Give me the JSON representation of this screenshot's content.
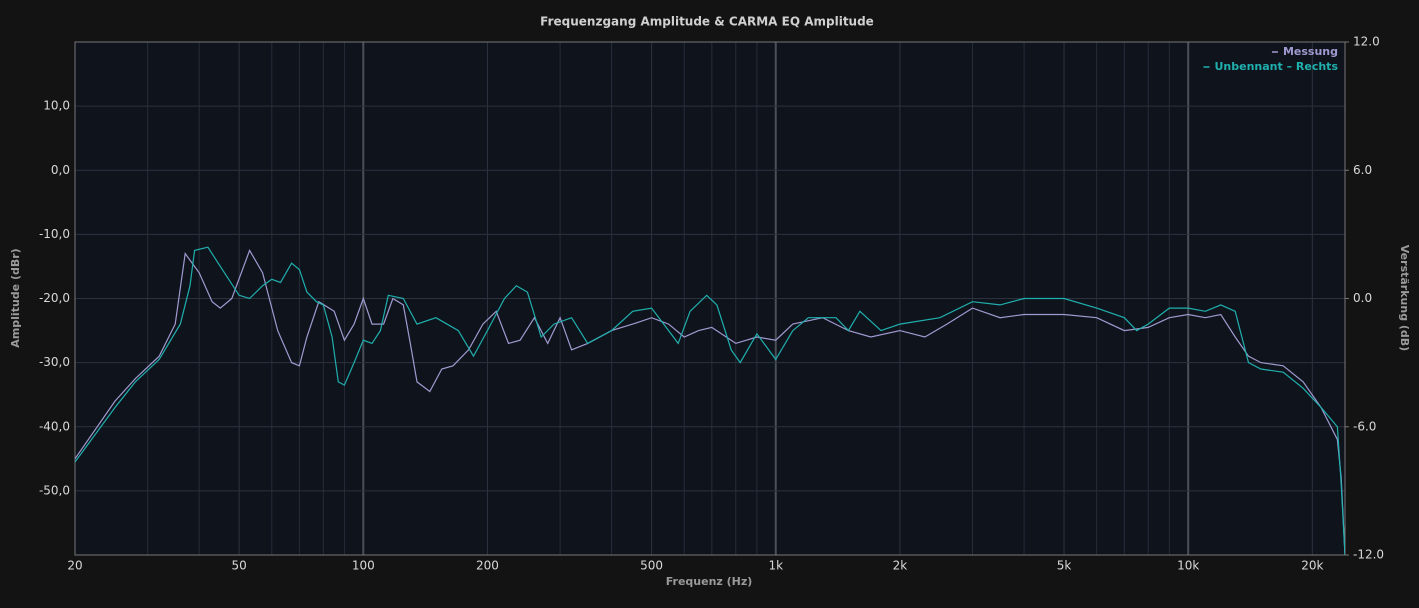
{
  "chart_data": {
    "type": "line",
    "title": "Frequenzgang Amplitude & CARMA EQ Amplitude",
    "xlabel": "Frequenz (Hz)",
    "ylabel": "Amplitude (dBr)",
    "y2label": "Verstärkung (dB)",
    "xscale": "log",
    "xlim": [
      20,
      24000
    ],
    "xticks": [
      20,
      50,
      100,
      200,
      500,
      {
        "value": 1000,
        "label": "1k"
      },
      {
        "value": 2000,
        "label": "2k"
      },
      {
        "value": 5000,
        "label": "5k"
      },
      {
        "value": 10000,
        "label": "10k"
      },
      {
        "value": 20000,
        "label": "20k"
      }
    ],
    "xgrid_minor": [
      30,
      40,
      60,
      70,
      80,
      90,
      300,
      400,
      600,
      700,
      800,
      900,
      3000,
      4000,
      6000,
      7000,
      8000,
      9000
    ],
    "ylim": [
      -60,
      20
    ],
    "yticks": [
      {
        "value": 10,
        "label": "10,0"
      },
      {
        "value": 0,
        "label": "0,0"
      },
      {
        "value": -10,
        "label": "-10,0"
      },
      {
        "value": -20,
        "label": "-20,0"
      },
      {
        "value": -30,
        "label": "-30,0"
      },
      {
        "value": -40,
        "label": "-40,0"
      },
      {
        "value": -50,
        "label": "-50,0"
      }
    ],
    "y2lim": [
      -12,
      12
    ],
    "y2ticks": [
      {
        "value": 12,
        "label": "12.0"
      },
      {
        "value": 6,
        "label": "6.0"
      },
      {
        "value": 0,
        "label": "0.0"
      },
      {
        "value": -6,
        "label": "-6.0"
      },
      {
        "value": -12,
        "label": "-12.0"
      }
    ],
    "grid": true,
    "legend": "upper right",
    "series": [
      {
        "name": "Messung",
        "color": "#a09ad0",
        "x": [
          20,
          25,
          28,
          32,
          35,
          37,
          40,
          43,
          45,
          48,
          53,
          57,
          62,
          67,
          70,
          73,
          78,
          85,
          90,
          95,
          100,
          105,
          112,
          118,
          125,
          130,
          135,
          145,
          155,
          165,
          180,
          195,
          210,
          225,
          240,
          260,
          280,
          300,
          320,
          350,
          400,
          450,
          500,
          550,
          600,
          650,
          700,
          800,
          900,
          1000,
          1100,
          1300,
          1500,
          1700,
          2000,
          2300,
          2600,
          3000,
          3500,
          4000,
          5000,
          6000,
          7000,
          8000,
          9000,
          10000,
          11000,
          12000,
          13000,
          14000,
          15000,
          17000,
          19000,
          21000,
          23000,
          23500,
          24000
        ],
        "values": [
          -45,
          -36,
          -32.5,
          -29,
          -24,
          -13,
          -16,
          -20.5,
          -21.5,
          -20,
          -12.5,
          -16,
          -25,
          -30,
          -30.5,
          -26,
          -20.5,
          -22,
          -26.5,
          -24,
          -20,
          -24,
          -24,
          -20,
          -21,
          -27,
          -33,
          -34.5,
          -31,
          -30.5,
          -28,
          -24,
          -22,
          -27,
          -26.5,
          -23,
          -27,
          -23,
          -28,
          -27,
          -25,
          -24,
          -23,
          -24,
          -26,
          -25,
          -24.5,
          -27,
          -26,
          -26.5,
          -24,
          -23,
          -25,
          -26,
          -25,
          -26,
          -24,
          -21.5,
          -23,
          -22.5,
          -22.5,
          -23,
          -25,
          -24.5,
          -23,
          -22.5,
          -23,
          -22.5,
          -26,
          -29,
          -30,
          -30.5,
          -33,
          -37,
          -42,
          -48,
          -60
        ]
      },
      {
        "name": "Unbennant – Rechts",
        "color": "#1fb0ae",
        "x": [
          20,
          25,
          28,
          32,
          36,
          38,
          39,
          42,
          45,
          50,
          53,
          57,
          60,
          63,
          67,
          70,
          73,
          77,
          80,
          84,
          87,
          90,
          95,
          100,
          105,
          110,
          115,
          125,
          135,
          150,
          170,
          185,
          200,
          220,
          235,
          250,
          270,
          290,
          320,
          350,
          400,
          450,
          500,
          550,
          580,
          620,
          680,
          720,
          780,
          820,
          900,
          1000,
          1100,
          1200,
          1400,
          1500,
          1600,
          1800,
          2000,
          2500,
          3000,
          3500,
          4000,
          5000,
          6000,
          7000,
          7500,
          8000,
          9000,
          10000,
          11000,
          12000,
          13000,
          14000,
          15000,
          17000,
          19000,
          21000,
          23000,
          23500,
          24000
        ],
        "values": [
          -45.5,
          -37,
          -33,
          -29.5,
          -24,
          -18,
          -12.5,
          -12,
          -15,
          -19.5,
          -20,
          -18,
          -17,
          -17.5,
          -14.5,
          -15.5,
          -19,
          -20.5,
          -21,
          -26,
          -33,
          -33.5,
          -30,
          -26.5,
          -27,
          -25,
          -19.5,
          -20,
          -24,
          -23,
          -25,
          -29,
          -25,
          -20,
          -18,
          -19,
          -26,
          -24,
          -23,
          -27,
          -25,
          -22,
          -21.5,
          -25,
          -27,
          -22,
          -19.5,
          -21,
          -28,
          -30,
          -25.5,
          -29.5,
          -25,
          -23,
          -23,
          -25,
          -22,
          -25,
          -24,
          -23,
          -20.5,
          -21,
          -20,
          -20,
          -21.5,
          -23,
          -25,
          -24,
          -21.5,
          -21.5,
          -22,
          -21,
          -22,
          -30,
          -31,
          -31.5,
          -34,
          -37,
          -40,
          -49,
          -60
        ]
      }
    ]
  }
}
